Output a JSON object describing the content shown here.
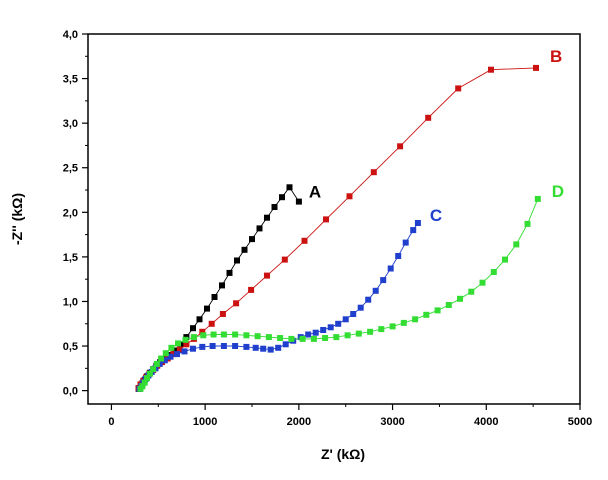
{
  "chart_data": {
    "type": "scatter",
    "title": "",
    "xlabel": "Z' (kΩ)",
    "ylabel": "-Z'' (kΩ)",
    "xlim": [
      -250,
      5000
    ],
    "ylim": [
      -0.15,
      4.0
    ],
    "x_ticks": [
      0,
      1000,
      2000,
      3000,
      4000,
      5000
    ],
    "x_tick_labels": [
      "0",
      "1000",
      "2000",
      "3000",
      "4000",
      "5000"
    ],
    "y_ticks": [
      0,
      0.5,
      1,
      1.5,
      2,
      2.5,
      3,
      3.5,
      4
    ],
    "y_tick_labels": [
      "0,0",
      "0,5",
      "1,0",
      "1,5",
      "2,0",
      "2,5",
      "3,0",
      "3,5",
      "4,0"
    ],
    "grid": false,
    "series": [
      {
        "name": "A",
        "color": "#000000",
        "points": [
          [
            290,
            0.02
          ],
          [
            310,
            0.05
          ],
          [
            330,
            0.08
          ],
          [
            355,
            0.12
          ],
          [
            380,
            0.16
          ],
          [
            410,
            0.2
          ],
          [
            445,
            0.24
          ],
          [
            480,
            0.28
          ],
          [
            520,
            0.32
          ],
          [
            570,
            0.36
          ],
          [
            620,
            0.4
          ],
          [
            680,
            0.45
          ],
          [
            740,
            0.52
          ],
          [
            800,
            0.6
          ],
          [
            870,
            0.7
          ],
          [
            940,
            0.8
          ],
          [
            1020,
            0.92
          ],
          [
            1100,
            1.05
          ],
          [
            1180,
            1.18
          ],
          [
            1260,
            1.32
          ],
          [
            1340,
            1.46
          ],
          [
            1420,
            1.58
          ],
          [
            1500,
            1.7
          ],
          [
            1580,
            1.82
          ],
          [
            1660,
            1.94
          ],
          [
            1740,
            2.06
          ],
          [
            1820,
            2.17
          ],
          [
            1900,
            2.28
          ],
          [
            2000,
            2.12
          ]
        ]
      },
      {
        "name": "B",
        "color": "#cc1111",
        "points": [
          [
            290,
            0.03
          ],
          [
            310,
            0.07
          ],
          [
            340,
            0.11
          ],
          [
            370,
            0.15
          ],
          [
            405,
            0.19
          ],
          [
            445,
            0.23
          ],
          [
            490,
            0.28
          ],
          [
            540,
            0.32
          ],
          [
            600,
            0.36
          ],
          [
            660,
            0.41
          ],
          [
            730,
            0.46
          ],
          [
            800,
            0.52
          ],
          [
            880,
            0.58
          ],
          [
            970,
            0.66
          ],
          [
            1070,
            0.75
          ],
          [
            1190,
            0.86
          ],
          [
            1330,
            0.98
          ],
          [
            1490,
            1.13
          ],
          [
            1660,
            1.29
          ],
          [
            1850,
            1.47
          ],
          [
            2060,
            1.68
          ],
          [
            2290,
            1.92
          ],
          [
            2540,
            2.18
          ],
          [
            2800,
            2.45
          ],
          [
            3080,
            2.74
          ],
          [
            3380,
            3.06
          ],
          [
            3700,
            3.39
          ],
          [
            4050,
            3.6
          ],
          [
            4530,
            3.62
          ]
        ]
      },
      {
        "name": "C",
        "color": "#1f3fcc",
        "points": [
          [
            300,
            0.02
          ],
          [
            320,
            0.05
          ],
          [
            340,
            0.09
          ],
          [
            365,
            0.13
          ],
          [
            395,
            0.17
          ],
          [
            430,
            0.21
          ],
          [
            470,
            0.25
          ],
          [
            515,
            0.3
          ],
          [
            570,
            0.34
          ],
          [
            630,
            0.38
          ],
          [
            700,
            0.41
          ],
          [
            780,
            0.44
          ],
          [
            870,
            0.47
          ],
          [
            970,
            0.49
          ],
          [
            1080,
            0.5
          ],
          [
            1200,
            0.5
          ],
          [
            1320,
            0.5
          ],
          [
            1440,
            0.49
          ],
          [
            1540,
            0.48
          ],
          [
            1620,
            0.47
          ],
          [
            1700,
            0.46
          ],
          [
            1780,
            0.48
          ],
          [
            1860,
            0.52
          ],
          [
            1940,
            0.56
          ],
          [
            2020,
            0.6
          ],
          [
            2100,
            0.63
          ],
          [
            2180,
            0.65
          ],
          [
            2260,
            0.68
          ],
          [
            2340,
            0.71
          ],
          [
            2420,
            0.75
          ],
          [
            2500,
            0.8
          ],
          [
            2580,
            0.86
          ],
          [
            2660,
            0.93
          ],
          [
            2740,
            1.02
          ],
          [
            2820,
            1.12
          ],
          [
            2900,
            1.24
          ],
          [
            2980,
            1.37
          ],
          [
            3060,
            1.51
          ],
          [
            3140,
            1.66
          ],
          [
            3220,
            1.8
          ],
          [
            3270,
            1.88
          ]
        ]
      },
      {
        "name": "D",
        "color": "#33dd33",
        "points": [
          [
            310,
            0.02
          ],
          [
            330,
            0.05
          ],
          [
            355,
            0.09
          ],
          [
            380,
            0.14
          ],
          [
            410,
            0.19
          ],
          [
            445,
            0.24
          ],
          [
            485,
            0.3
          ],
          [
            530,
            0.36
          ],
          [
            580,
            0.42
          ],
          [
            640,
            0.48
          ],
          [
            710,
            0.53
          ],
          [
            790,
            0.57
          ],
          [
            880,
            0.6
          ],
          [
            980,
            0.62
          ],
          [
            1090,
            0.63
          ],
          [
            1200,
            0.63
          ],
          [
            1320,
            0.63
          ],
          [
            1440,
            0.62
          ],
          [
            1560,
            0.61
          ],
          [
            1680,
            0.6
          ],
          [
            1800,
            0.59
          ],
          [
            1920,
            0.58
          ],
          [
            2040,
            0.58
          ],
          [
            2160,
            0.58
          ],
          [
            2280,
            0.59
          ],
          [
            2400,
            0.6
          ],
          [
            2520,
            0.62
          ],
          [
            2640,
            0.64
          ],
          [
            2760,
            0.66
          ],
          [
            2880,
            0.69
          ],
          [
            3000,
            0.72
          ],
          [
            3120,
            0.76
          ],
          [
            3240,
            0.8
          ],
          [
            3360,
            0.85
          ],
          [
            3480,
            0.9
          ],
          [
            3600,
            0.96
          ],
          [
            3720,
            1.03
          ],
          [
            3840,
            1.11
          ],
          [
            3960,
            1.21
          ],
          [
            4080,
            1.33
          ],
          [
            4200,
            1.47
          ],
          [
            4320,
            1.64
          ],
          [
            4440,
            1.87
          ],
          [
            4550,
            2.15
          ]
        ]
      }
    ]
  }
}
